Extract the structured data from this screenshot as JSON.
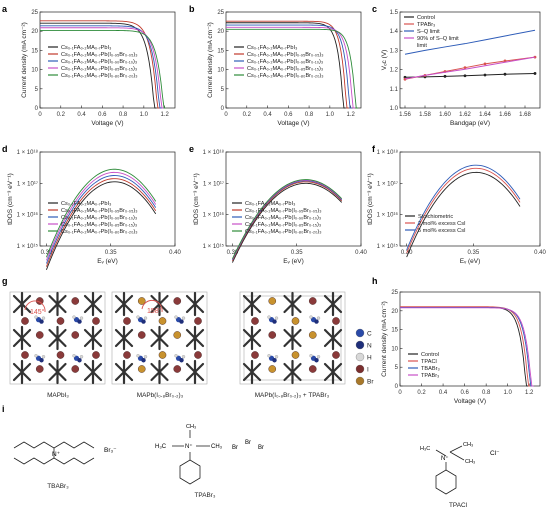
{
  "panels": [
    "a",
    "b",
    "c",
    "d",
    "e",
    "f",
    "g",
    "h",
    "i"
  ],
  "chart_data": [
    {
      "panel": "a",
      "type": "line",
      "xlabel": "Voltage (V)",
      "ylabel": "Current density (mA cm⁻²)",
      "xlim": [
        0,
        1.3
      ],
      "ylim": [
        0,
        25
      ],
      "xticks": [
        "0",
        "0.2",
        "0.4",
        "0.6",
        "0.8",
        "1.0",
        "1.2"
      ],
      "xtick_vals": [
        0,
        0.2,
        0.4,
        0.6,
        0.8,
        1.0,
        1.2
      ],
      "yticks": [
        "0",
        "5",
        "10",
        "15",
        "20",
        "25"
      ],
      "ytick_vals": [
        0,
        5,
        10,
        15,
        20,
        25
      ],
      "series": [
        {
          "name": "Cs₀.₁FA₀.₂MA₀.₇PbI₃",
          "color": "#222222",
          "jsc": 22.1,
          "voc": 1.1,
          "k": 16
        },
        {
          "name": "Cs₀.₁FA₀.₂MA₀.₇Pb(I₀.₉₅Br₀.₀₅)₃",
          "color": "#c0392b",
          "jsc": 22.7,
          "voc": 1.13,
          "k": 16
        },
        {
          "name": "Cs₀.₁FA₀.₂MA₀.₇Pb(I₀.₉₀Br₀.₁₀)₃",
          "color": "#2e5cb8",
          "jsc": 21.4,
          "voc": 1.15,
          "k": 16
        },
        {
          "name": "Cs₀.₁FA₀.₂MA₀.₇Pb(I₀.₈₅Br₀.₁₅)₃",
          "color": "#c74fc7",
          "jsc": 20.9,
          "voc": 1.17,
          "k": 16
        },
        {
          "name": "Cs₀.₁FA₀.₂MA₀.₇Pb(I₀.₈₀Br₀.₂₀)₃",
          "color": "#2e8b3a",
          "jsc": 20.2,
          "voc": 1.19,
          "k": 16
        }
      ]
    },
    {
      "panel": "b",
      "type": "line",
      "xlabel": "Voltage (V)",
      "ylabel": "Current density (mA cm⁻²)",
      "xlim": [
        0,
        1.3
      ],
      "ylim": [
        0,
        25
      ],
      "xticks": [
        "0",
        "0.2",
        "0.4",
        "0.6",
        "0.8",
        "1.0",
        "1.2"
      ],
      "xtick_vals": [
        0,
        0.2,
        0.4,
        0.6,
        0.8,
        1.0,
        1.2
      ],
      "yticks": [
        "0",
        "5",
        "10",
        "15",
        "20",
        "25"
      ],
      "ytick_vals": [
        0,
        5,
        10,
        15,
        20,
        25
      ],
      "series": [
        {
          "name": "Cs₀.₁FA₀.₂MA₀.₇PbI₃",
          "color": "#222222",
          "jsc": 22.2,
          "voc": 1.13,
          "k": 20
        },
        {
          "name": "Cs₀.₁FA₀.₂MA₀.₇Pb(I₀.₉₅Br₀.₀₅)₃",
          "color": "#c0392b",
          "jsc": 22.6,
          "voc": 1.16,
          "k": 20
        },
        {
          "name": "Cs₀.₁FA₀.₂MA₀.₇Pb(I₀.₉₀Br₀.₁₀)₃",
          "color": "#2e5cb8",
          "jsc": 21.6,
          "voc": 1.19,
          "k": 20
        },
        {
          "name": "Cs₀.₁FA₀.₂MA₀.₇Pb(I₀.₈₅Br₀.₁₅)₃",
          "color": "#c74fc7",
          "jsc": 21.0,
          "voc": 1.22,
          "k": 20
        },
        {
          "name": "Cs₀.₁FA₀.₂MA₀.₇Pb(I₀.₈₀Br₀.₂₀)₃",
          "color": "#2e8b3a",
          "jsc": 20.5,
          "voc": 1.25,
          "k": 20
        }
      ]
    },
    {
      "panel": "c",
      "type": "line",
      "xlabel": "Bandgap (eV)",
      "ylabel": "Vₒᴄ (V)",
      "xlim": [
        1.555,
        1.695
      ],
      "ylim": [
        1.0,
        1.5
      ],
      "xticks": [
        "1.56",
        "1.58",
        "1.60",
        "1.62",
        "1.64",
        "1.66",
        "1.68"
      ],
      "xtick_vals": [
        1.56,
        1.58,
        1.6,
        1.62,
        1.64,
        1.66,
        1.68
      ],
      "yticks": [
        "1.0",
        "1.1",
        "1.2",
        "1.3",
        "1.4",
        "1.5"
      ],
      "ytick_vals": [
        1.0,
        1.1,
        1.2,
        1.3,
        1.4,
        1.5
      ],
      "x": [
        1.56,
        1.58,
        1.6,
        1.62,
        1.64,
        1.66,
        1.69
      ],
      "series": [
        {
          "name": "Control",
          "color": "#222222",
          "marker": true,
          "values": [
            1.16,
            1.162,
            1.165,
            1.168,
            1.172,
            1.176,
            1.18
          ]
        },
        {
          "name": "TPABr₃",
          "color": "#d9534f",
          "marker": true,
          "values": [
            1.15,
            1.17,
            1.19,
            1.21,
            1.23,
            1.245,
            1.265
          ]
        },
        {
          "name": "S–Q limit",
          "color": "#2e5cb8",
          "marker": false,
          "values": [
            1.28,
            1.3,
            1.318,
            1.335,
            1.355,
            1.375,
            1.405
          ]
        },
        {
          "name": "90% of S–Q limit",
          "color": "#c74fc7",
          "marker": false,
          "values": [
            1.152,
            1.17,
            1.186,
            1.202,
            1.22,
            1.238,
            1.265
          ]
        }
      ],
      "legend_extra": "limit"
    },
    {
      "panel": "d",
      "type": "line",
      "xlabel": "Eᵥ (eV)",
      "ylabel": "tDOS (cm⁻³ eV⁻¹)",
      "xlim": [
        0.295,
        0.4
      ],
      "ylog": true,
      "ylim_exp": [
        15,
        18
      ],
      "xticks": [
        "0.30",
        "0.35",
        "0.40"
      ],
      "xtick_vals": [
        0.3,
        0.35,
        0.4
      ],
      "ytick_exps": [
        15,
        16,
        17,
        18
      ],
      "peak_x": 0.353,
      "width": 0.03,
      "series": [
        {
          "name": "Cs₀.₁FA₀.₂MA₀.₇PbI₃",
          "color": "#222222",
          "peak": 17.05
        },
        {
          "name": "Cs₀.₁FA₀.₂MA₀.₇Pb(I₀.₉₅Br₀.₀₅)₃",
          "color": "#c0392b",
          "peak": 17.15
        },
        {
          "name": "Cs₀.₁FA₀.₂MA₀.₇Pb(I₀.₉₀Br₀.₁₀)₃",
          "color": "#2e5cb8",
          "peak": 17.25
        },
        {
          "name": "Cs₀.₁FA₀.₂MA₀.₇Pb(I₀.₈₅Br₀.₁₅)₃",
          "color": "#c74fc7",
          "peak": 17.35
        },
        {
          "name": "Cs₀.₁FA₀.₂MA₀.₇Pb(I₀.₈₀Br₀.₂₀)₃",
          "color": "#2e8b3a",
          "peak": 17.45
        }
      ]
    },
    {
      "panel": "e",
      "type": "line",
      "xlabel": "Eᵥ (eV)",
      "ylabel": "tDOS (cm⁻³ eV⁻¹)",
      "xlim": [
        0.295,
        0.4
      ],
      "ylog": true,
      "ylim_exp": [
        15,
        18
      ],
      "xticks": [
        "0.30",
        "0.35",
        "0.40"
      ],
      "xtick_vals": [
        0.3,
        0.35,
        0.4
      ],
      "ytick_exps": [
        15,
        16,
        17,
        18
      ],
      "peak_x": 0.357,
      "width": 0.034,
      "series": [
        {
          "name": "Cs₀.₁FA₀.₂MA₀.₇PbI₃",
          "color": "#222222",
          "peak": 17.0
        },
        {
          "name": "Cs₀.₁FA₀.₂MA₀.₇Pb(I₀.₉₅Br₀.₀₅)₃",
          "color": "#c0392b",
          "peak": 17.05
        },
        {
          "name": "Cs₀.₁FA₀.₂MA₀.₇Pb(I₀.₉₀Br₀.₁₀)₃",
          "color": "#2e5cb8",
          "peak": 17.08
        },
        {
          "name": "Cs₀.₁FA₀.₂MA₀.₇Pb(I₀.₈₅Br₀.₁₅)₃",
          "color": "#c74fc7",
          "peak": 17.1
        },
        {
          "name": "Cs₀.₁FA₀.₂MA₀.₇Pb(I₀.₈₀Br₀.₂₀)₃",
          "color": "#2e8b3a",
          "peak": 17.12
        }
      ]
    },
    {
      "panel": "f",
      "type": "line",
      "xlabel": "Eᵥ (eV)",
      "ylabel": "tDOS (cm⁻³ eV⁻¹)",
      "xlim": [
        0.295,
        0.4
      ],
      "ylog": true,
      "ylim_exp": [
        15,
        18
      ],
      "xticks": [
        "0.30",
        "0.35",
        "0.40"
      ],
      "xtick_vals": [
        0.3,
        0.35,
        0.4
      ],
      "ytick_exps": [
        15,
        16,
        17,
        18
      ],
      "peak_x": 0.352,
      "width": 0.03,
      "series": [
        {
          "name": "Stoichiometric",
          "color": "#222222",
          "peak": 17.35
        },
        {
          "name": "2 mol% excess CsI",
          "color": "#d9534f",
          "peak": 17.48
        },
        {
          "name": "5 mol% excess CsI",
          "color": "#2e5cb8",
          "peak": 17.58
        }
      ]
    },
    {
      "panel": "h",
      "type": "line",
      "xlabel": "Voltage (V)",
      "ylabel": "Current density (mA cm⁻²)",
      "xlim": [
        0,
        1.3
      ],
      "ylim": [
        0,
        25
      ],
      "xticks": [
        "0",
        "0.2",
        "0.4",
        "0.6",
        "0.8",
        "1.0",
        "1.2"
      ],
      "xtick_vals": [
        0,
        0.2,
        0.4,
        0.6,
        0.8,
        1.0,
        1.2
      ],
      "yticks": [
        "0",
        "5",
        "10",
        "15",
        "20",
        "25"
      ],
      "ytick_vals": [
        0,
        5,
        10,
        15,
        20,
        25
      ],
      "series": [
        {
          "name": "Control",
          "color": "#222222",
          "jsc": 21.0,
          "voc": 1.17,
          "k": 18
        },
        {
          "name": "TPACl",
          "color": "#d9534f",
          "jsc": 21.1,
          "voc": 1.19,
          "k": 18
        },
        {
          "name": "TBABr₃",
          "color": "#2e5cb8",
          "jsc": 20.9,
          "voc": 1.21,
          "k": 18
        },
        {
          "name": "TPABr₃",
          "color": "#c74fc7",
          "jsc": 20.8,
          "voc": 1.22,
          "k": 18
        }
      ]
    }
  ],
  "structures": {
    "captions": [
      "MAPbI₃",
      "MAPb(I₀.₈Br₀.₂)₃",
      "MAPb(I₀.₈Br₀.₂)₃ + TPABr₃"
    ],
    "angles": [
      "145°",
      "158°"
    ],
    "atom_legend": [
      {
        "label": "C",
        "color": "#2a4aa8"
      },
      {
        "label": "N",
        "color": "#1f2f7a"
      },
      {
        "label": "H",
        "color": "#d8d8d8"
      },
      {
        "label": "I",
        "color": "#7a2e2e"
      },
      {
        "label": "Br",
        "color": "#a8782a"
      }
    ]
  },
  "molecules": {
    "names": [
      "TBABr₃",
      "TPABr₃",
      "TPACl"
    ],
    "tbabr3_anion": "Br₃⁻",
    "tpabr3_text": [
      "H₃C",
      "N⁺",
      "CH₃",
      "CH₃",
      "Br",
      "Br",
      "Br"
    ],
    "tpacl_text": [
      "H₃C",
      "N⁺",
      "CH₃",
      "CH₃",
      "Cl⁻"
    ]
  }
}
